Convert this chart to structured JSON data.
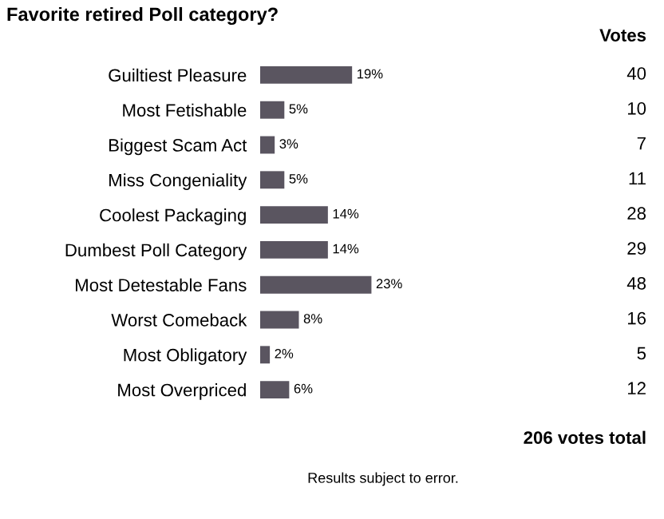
{
  "chart_data": {
    "type": "bar",
    "orientation": "horizontal",
    "title": "Favorite retired Poll category?",
    "categories": [
      "Guiltiest Pleasure",
      "Most Fetishable",
      "Biggest Scam Act",
      "Miss Congeniality",
      "Coolest Packaging",
      "Dumbest Poll Category",
      "Most Detestable Fans",
      "Worst Comeback",
      "Most Obligatory",
      "Most Overpriced"
    ],
    "values": [
      19,
      5,
      3,
      5,
      14,
      14,
      23,
      8,
      2,
      6
    ],
    "value_labels": [
      "19%",
      "5%",
      "3%",
      "5%",
      "14%",
      "14%",
      "23%",
      "8%",
      "2%",
      "6%"
    ],
    "color": "#5a5560",
    "annotations": [
      "Votes",
      "206 votes total",
      "Results subject to error.",
      "40",
      "10",
      "7",
      "11",
      "28",
      "29",
      "48",
      "16",
      "5",
      "12"
    ]
  }
}
